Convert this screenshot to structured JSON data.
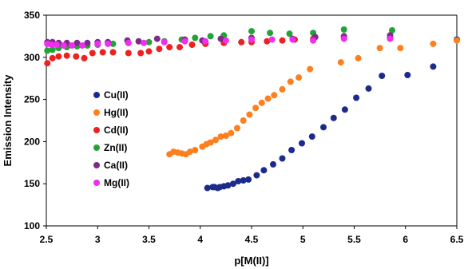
{
  "chart_data": {
    "type": "scatter",
    "title": "",
    "xlabel": "p[M(II)]",
    "ylabel": "Emission Intensity",
    "xlim": [
      2.5,
      6.5
    ],
    "ylim": [
      100,
      350
    ],
    "xticks": [
      "2.5",
      "3",
      "3.5",
      "4",
      "4.5",
      "5",
      "5.5",
      "6",
      "6.5"
    ],
    "yticks": [
      "100",
      "150",
      "200",
      "250",
      "300",
      "350"
    ],
    "grid": false,
    "legend_position": "left",
    "series": [
      {
        "name": "Cu(II)",
        "color": "#1c2a8c",
        "points": [
          [
            4.07,
            145
          ],
          [
            4.12,
            146
          ],
          [
            4.14,
            146
          ],
          [
            4.17,
            145
          ],
          [
            4.19,
            146
          ],
          [
            4.23,
            147
          ],
          [
            4.27,
            148
          ],
          [
            4.32,
            150
          ],
          [
            4.37,
            153
          ],
          [
            4.42,
            154
          ],
          [
            4.47,
            155
          ],
          [
            4.55,
            160
          ],
          [
            4.62,
            166
          ],
          [
            4.71,
            173
          ],
          [
            4.8,
            180
          ],
          [
            4.89,
            190
          ],
          [
            4.99,
            198
          ],
          [
            5.09,
            206
          ],
          [
            5.2,
            217
          ],
          [
            5.3,
            228
          ],
          [
            5.41,
            238
          ],
          [
            5.52,
            252
          ],
          [
            5.64,
            263
          ],
          [
            5.77,
            278
          ],
          [
            6.02,
            279
          ],
          [
            6.27,
            289
          ],
          [
            6.5,
            321
          ]
        ]
      },
      {
        "name": "Hg(II)",
        "color": "#ff7f1e",
        "points": [
          [
            3.7,
            185
          ],
          [
            3.74,
            188
          ],
          [
            3.78,
            187
          ],
          [
            3.82,
            186
          ],
          [
            3.86,
            185
          ],
          [
            3.9,
            188
          ],
          [
            3.95,
            190
          ],
          [
            4.02,
            194
          ],
          [
            4.06,
            197
          ],
          [
            4.1,
            199
          ],
          [
            4.15,
            202
          ],
          [
            4.2,
            206
          ],
          [
            4.25,
            207
          ],
          [
            4.3,
            210
          ],
          [
            4.36,
            216
          ],
          [
            4.42,
            225
          ],
          [
            4.48,
            232
          ],
          [
            4.54,
            240
          ],
          [
            4.6,
            246
          ],
          [
            4.66,
            251
          ],
          [
            4.72,
            255
          ],
          [
            4.8,
            262
          ],
          [
            4.88,
            271
          ],
          [
            4.96,
            276
          ],
          [
            5.07,
            286
          ],
          [
            5.37,
            294
          ],
          [
            5.54,
            299
          ],
          [
            5.75,
            311
          ],
          [
            5.95,
            311
          ],
          [
            6.27,
            316
          ],
          [
            6.5,
            320
          ]
        ]
      },
      {
        "name": "Cd(II)",
        "color": "#ee2020",
        "points": [
          [
            2.51,
            293
          ],
          [
            2.56,
            299
          ],
          [
            2.62,
            301
          ],
          [
            2.7,
            302
          ],
          [
            2.79,
            301
          ],
          [
            2.87,
            299
          ],
          [
            2.95,
            305
          ],
          [
            3.05,
            306
          ],
          [
            3.15,
            306
          ],
          [
            3.3,
            305
          ],
          [
            3.42,
            305
          ],
          [
            3.5,
            307
          ],
          [
            3.6,
            310
          ],
          [
            3.7,
            312
          ],
          [
            3.8,
            312
          ],
          [
            3.92,
            315
          ],
          [
            4.05,
            316
          ],
          [
            4.23,
            317
          ],
          [
            4.4,
            318
          ],
          [
            4.5,
            318
          ],
          [
            4.65,
            319
          ],
          [
            4.8,
            320
          ],
          [
            4.92,
            321
          ],
          [
            5.1,
            322
          ],
          [
            5.4,
            323
          ],
          [
            5.85,
            323
          ]
        ]
      },
      {
        "name": "Zn(II)",
        "color": "#22a335",
        "points": [
          [
            2.51,
            308
          ],
          [
            2.56,
            309
          ],
          [
            2.62,
            311
          ],
          [
            2.7,
            312
          ],
          [
            2.8,
            313
          ],
          [
            2.9,
            314
          ],
          [
            3.0,
            315
          ],
          [
            3.15,
            316
          ],
          [
            3.3,
            317
          ],
          [
            3.5,
            318
          ],
          [
            3.65,
            319
          ],
          [
            3.82,
            321
          ],
          [
            3.95,
            323
          ],
          [
            4.1,
            325
          ],
          [
            4.23,
            326
          ],
          [
            4.5,
            331
          ],
          [
            4.68,
            329
          ],
          [
            4.87,
            328
          ],
          [
            5.1,
            329
          ],
          [
            5.4,
            333
          ],
          [
            5.87,
            332
          ]
        ]
      },
      {
        "name": "Ca(II)",
        "color": "#7e2a87",
        "points": [
          [
            2.51,
            318
          ],
          [
            2.56,
            318
          ],
          [
            2.62,
            317
          ],
          [
            2.7,
            317
          ],
          [
            2.8,
            317
          ],
          [
            2.9,
            317
          ],
          [
            3.0,
            318
          ],
          [
            3.1,
            318
          ],
          [
            3.29,
            320
          ],
          [
            3.4,
            319
          ],
          [
            3.58,
            322
          ],
          [
            3.85,
            321
          ],
          [
            4.02,
            320
          ],
          [
            4.2,
            322
          ],
          [
            4.5,
            323
          ],
          [
            4.9,
            322
          ],
          [
            5.12,
            324
          ],
          [
            5.4,
            325
          ],
          [
            5.85,
            326
          ]
        ]
      },
      {
        "name": "Mg(II)",
        "color": "#f02df0",
        "points": [
          [
            2.51,
            316
          ],
          [
            2.55,
            315
          ],
          [
            2.6,
            315
          ],
          [
            2.67,
            314
          ],
          [
            2.75,
            314
          ],
          [
            2.85,
            314
          ],
          [
            3.0,
            316
          ],
          [
            3.1,
            316
          ],
          [
            3.3,
            317
          ],
          [
            3.45,
            317
          ],
          [
            3.65,
            318
          ],
          [
            3.85,
            319
          ],
          [
            4.05,
            319
          ],
          [
            4.25,
            320
          ],
          [
            4.5,
            321
          ],
          [
            4.7,
            321
          ],
          [
            4.9,
            321
          ],
          [
            5.1,
            320
          ],
          [
            5.4,
            322
          ],
          [
            5.85,
            322
          ]
        ]
      }
    ]
  }
}
